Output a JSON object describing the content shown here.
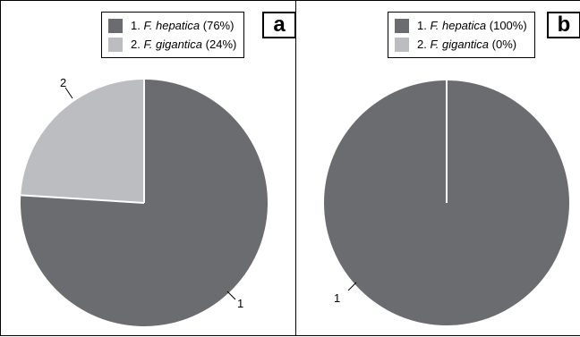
{
  "colors": {
    "series1": "#6b6c70",
    "series2": "#bcbdc1",
    "separator": "#ffffff",
    "leader": "#000000"
  },
  "chart_data": [
    {
      "type": "pie",
      "panel_label": "a",
      "categories": [
        "F. hepatica",
        "F. gigantica"
      ],
      "values": [
        76,
        24
      ],
      "slice_labels": [
        "1",
        "2"
      ],
      "legend": [
        {
          "num": "1.",
          "genus": "F.",
          "species": "hepatica",
          "pct": "(76%)"
        },
        {
          "num": "2.",
          "genus": "F.",
          "species": "gigantica",
          "pct": "(24%)"
        }
      ],
      "legend_position": "top-right"
    },
    {
      "type": "pie",
      "panel_label": "b",
      "categories": [
        "F. hepatica",
        "F. gigantica"
      ],
      "values": [
        100,
        0
      ],
      "slice_labels": [
        "1"
      ],
      "legend": [
        {
          "num": "1.",
          "genus": "F.",
          "species": "hepatica",
          "pct": "(100%)"
        },
        {
          "num": "2.",
          "genus": "F.",
          "species": "gigantica",
          "pct": "(0%)"
        }
      ],
      "legend_position": "top-right"
    }
  ]
}
